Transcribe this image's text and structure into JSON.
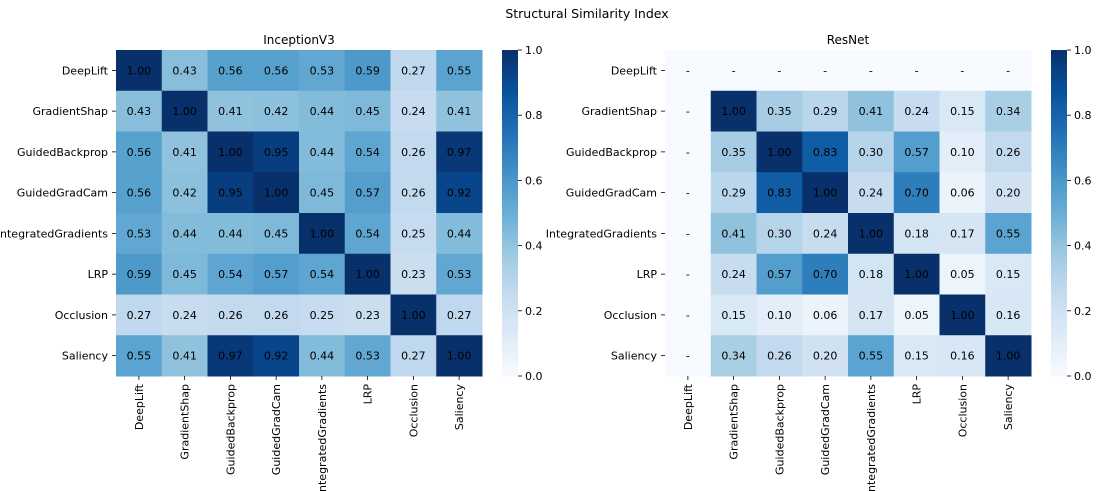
{
  "suptitle": "Structural Similarity Index",
  "chart_data": [
    {
      "type": "heatmap",
      "title": "InceptionV3",
      "colormap": "Blues",
      "vmin": 0.0,
      "vmax": 1.0,
      "colorbar_ticks": [
        "0.0",
        "0.2",
        "0.4",
        "0.6",
        "0.8",
        "1.0"
      ],
      "row_labels": [
        "DeepLift",
        "GradientShap",
        "GuidedBackprop",
        "GuidedGradCam",
        "IntegratedGradients",
        "LRP",
        "Occlusion",
        "Saliency"
      ],
      "col_labels": [
        "DeepLift",
        "GradientShap",
        "GuidedBackprop",
        "GuidedGradCam",
        "IntegratedGradients",
        "LRP",
        "Occlusion",
        "Saliency"
      ],
      "values": [
        [
          1.0,
          0.43,
          0.56,
          0.56,
          0.53,
          0.59,
          0.27,
          0.55
        ],
        [
          0.43,
          1.0,
          0.41,
          0.42,
          0.44,
          0.45,
          0.24,
          0.41
        ],
        [
          0.56,
          0.41,
          1.0,
          0.95,
          0.44,
          0.54,
          0.26,
          0.97
        ],
        [
          0.56,
          0.42,
          0.95,
          1.0,
          0.45,
          0.57,
          0.26,
          0.92
        ],
        [
          0.53,
          0.44,
          0.44,
          0.45,
          1.0,
          0.54,
          0.25,
          0.44
        ],
        [
          0.59,
          0.45,
          0.54,
          0.57,
          0.54,
          1.0,
          0.23,
          0.53
        ],
        [
          0.27,
          0.24,
          0.26,
          0.26,
          0.25,
          0.23,
          1.0,
          0.27
        ],
        [
          0.55,
          0.41,
          0.97,
          0.92,
          0.44,
          0.53,
          0.27,
          1.0
        ]
      ]
    },
    {
      "type": "heatmap",
      "title": "ResNet",
      "colormap": "Blues",
      "vmin": 0.0,
      "vmax": 1.0,
      "colorbar_ticks": [
        "0.0",
        "0.2",
        "0.4",
        "0.6",
        "0.8",
        "1.0"
      ],
      "missing_label": "-",
      "row_labels": [
        "DeepLift",
        "GradientShap",
        "GuidedBackprop",
        "GuidedGradCam",
        "IntegratedGradients",
        "LRP",
        "Occlusion",
        "Saliency"
      ],
      "col_labels": [
        "DeepLift",
        "GradientShap",
        "GuidedBackprop",
        "GuidedGradCam",
        "IntegratedGradients",
        "LRP",
        "Occlusion",
        "Saliency"
      ],
      "values": [
        [
          null,
          null,
          null,
          null,
          null,
          null,
          null,
          null
        ],
        [
          null,
          1.0,
          0.35,
          0.29,
          0.41,
          0.24,
          0.15,
          0.34
        ],
        [
          null,
          0.35,
          1.0,
          0.83,
          0.3,
          0.57,
          0.1,
          0.26
        ],
        [
          null,
          0.29,
          0.83,
          1.0,
          0.24,
          0.7,
          0.06,
          0.2
        ],
        [
          null,
          0.41,
          0.3,
          0.24,
          1.0,
          0.18,
          0.17,
          0.55
        ],
        [
          null,
          0.24,
          0.57,
          0.7,
          0.18,
          1.0,
          0.05,
          0.15
        ],
        [
          null,
          0.15,
          0.1,
          0.06,
          0.17,
          0.05,
          1.0,
          0.16
        ],
        [
          null,
          0.34,
          0.26,
          0.2,
          0.55,
          0.15,
          0.16,
          1.0
        ]
      ]
    }
  ]
}
